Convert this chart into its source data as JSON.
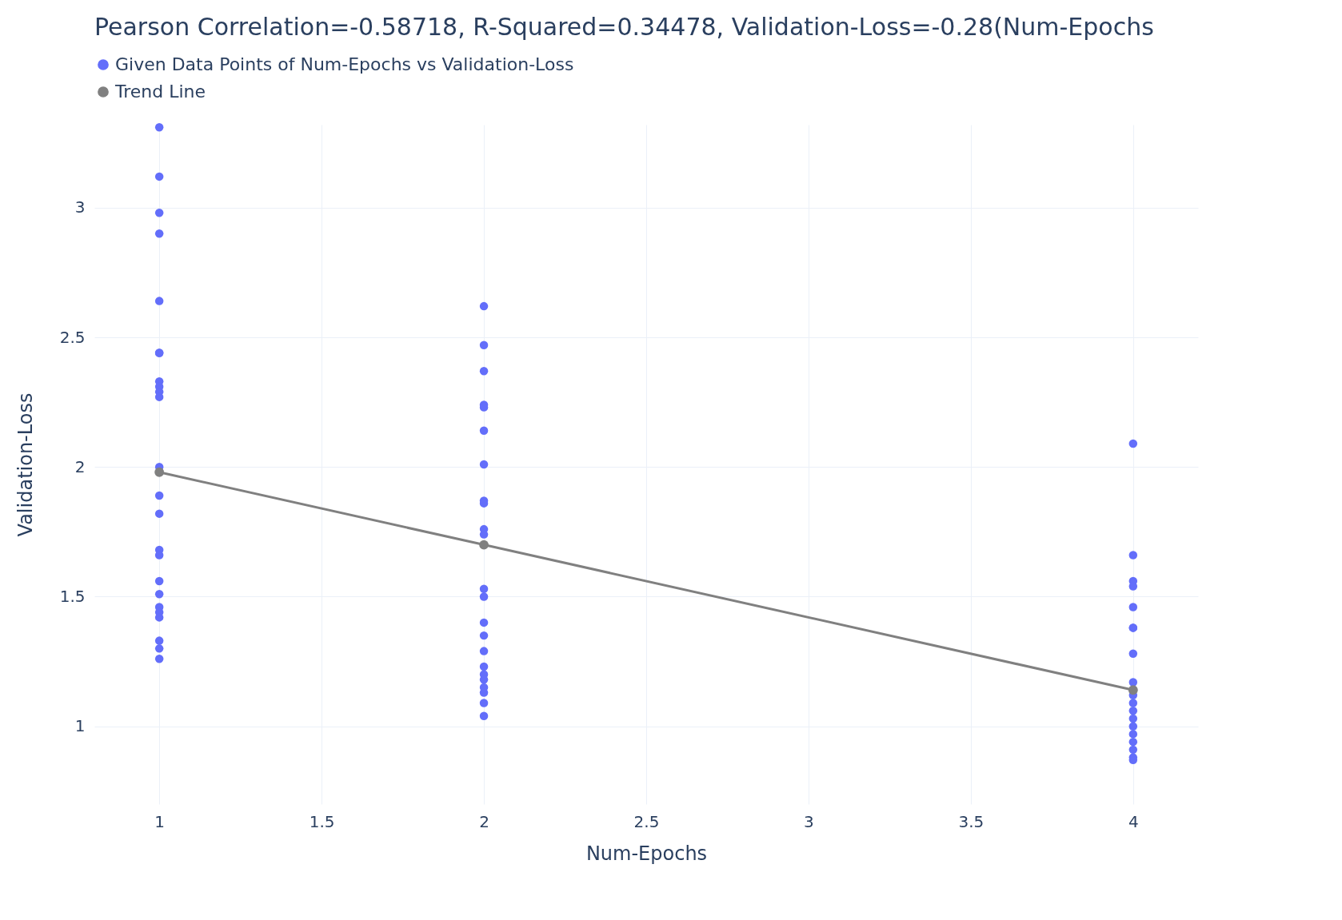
{
  "chart_data": {
    "type": "scatter",
    "title": "Pearson Correlation=-0.58718, R-Squared=0.34478, Validation-Loss=-0.28(Num-Epochs",
    "xlabel": "Num-Epochs",
    "ylabel": "Validation-Loss",
    "xlim": [
      0.8,
      4.2
    ],
    "ylim": [
      0.7,
      3.32
    ],
    "xticks": [
      1,
      1.5,
      2,
      2.5,
      3,
      3.5,
      4
    ],
    "yticks": [
      1,
      1.5,
      2,
      2.5,
      3
    ],
    "grid": true,
    "legend": "top left",
    "series": [
      {
        "name": "Given Data Points of Num-Epochs vs Validation-Loss",
        "marker": "circle",
        "color": "#636efa",
        "x": [
          1,
          1,
          1,
          1,
          1,
          1,
          1,
          1,
          1,
          1,
          1,
          1,
          1,
          1,
          1,
          1,
          1,
          1,
          1,
          1,
          1,
          1,
          1,
          1,
          2,
          2,
          2,
          2,
          2,
          2,
          2,
          2,
          2,
          2,
          2,
          2,
          2,
          2,
          2,
          2,
          2,
          2,
          2,
          2,
          2,
          2,
          2,
          4,
          4,
          4,
          4,
          4,
          4,
          4,
          4,
          4,
          4,
          4,
          4,
          4,
          4,
          4,
          4,
          4,
          4,
          4
        ],
        "values": [
          3.31,
          3.12,
          2.98,
          2.9,
          2.64,
          2.44,
          2.44,
          2.33,
          2.31,
          2.29,
          2.27,
          2.0,
          1.89,
          1.82,
          1.68,
          1.66,
          1.56,
          1.51,
          1.46,
          1.44,
          1.42,
          1.33,
          1.3,
          1.26,
          2.62,
          2.47,
          2.37,
          2.24,
          2.23,
          2.14,
          2.01,
          1.87,
          1.86,
          1.76,
          1.74,
          1.53,
          1.5,
          1.4,
          1.35,
          1.29,
          1.23,
          1.2,
          1.18,
          1.15,
          1.13,
          1.09,
          1.04,
          2.09,
          1.66,
          1.56,
          1.54,
          1.46,
          1.38,
          1.38,
          1.28,
          1.17,
          1.12,
          1.09,
          1.06,
          1.03,
          1.0,
          0.97,
          0.94,
          0.91,
          0.88,
          0.87
        ]
      },
      {
        "name": "Trend Line",
        "type": "line",
        "marker": "circle",
        "color": "#808080",
        "x": [
          1,
          2,
          4
        ],
        "values": [
          1.98,
          1.7,
          1.14
        ]
      }
    ]
  }
}
